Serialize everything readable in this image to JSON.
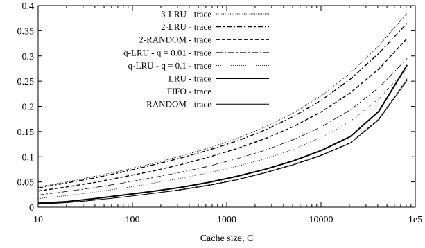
{
  "chart_data": {
    "type": "line",
    "title": "",
    "xlabel": "Cache size, C",
    "ylabel": "",
    "xscale": "log",
    "xlim": [
      10,
      100000
    ],
    "ylim": [
      0,
      0.4
    ],
    "grid": false,
    "legend_position": "top-left",
    "x_ticks": [
      {
        "value": 10,
        "label": "10"
      },
      {
        "value": 100,
        "label": "100"
      },
      {
        "value": 1000,
        "label": "1000"
      },
      {
        "value": 10000,
        "label": "10000"
      },
      {
        "value": 100000,
        "label": "1e5"
      }
    ],
    "y_ticks": [
      {
        "value": 0,
        "label": "0"
      },
      {
        "value": 0.05,
        "label": "0.05"
      },
      {
        "value": 0.1,
        "label": "0.1"
      },
      {
        "value": 0.15,
        "label": "0.15"
      },
      {
        "value": 0.2,
        "label": "0.2"
      },
      {
        "value": 0.25,
        "label": "0.25"
      },
      {
        "value": 0.3,
        "label": "0.3"
      },
      {
        "value": 0.35,
        "label": "0.35"
      },
      {
        "value": 0.4,
        "label": "0.4"
      }
    ],
    "series": [
      {
        "name": "3-LRU - trace",
        "style": "dotted-dense",
        "color": "#000000",
        "x": [
          10,
          20,
          40,
          80,
          160,
          320,
          640,
          1280,
          2560,
          5120,
          10240,
          20480,
          40960,
          81920
        ],
        "y": [
          0.04,
          0.05,
          0.061,
          0.073,
          0.086,
          0.101,
          0.117,
          0.136,
          0.159,
          0.187,
          0.222,
          0.266,
          0.32,
          0.385
        ]
      },
      {
        "name": "2-LRU - trace",
        "style": "dashdot",
        "color": "#000000",
        "x": [
          10,
          20,
          40,
          80,
          160,
          320,
          640,
          1280,
          2560,
          5120,
          10240,
          20480,
          40960,
          81920
        ],
        "y": [
          0.038,
          0.048,
          0.058,
          0.07,
          0.083,
          0.097,
          0.113,
          0.131,
          0.153,
          0.18,
          0.213,
          0.254,
          0.305,
          0.365
        ]
      },
      {
        "name": "2-RANDOM - trace",
        "style": "dashed",
        "color": "#000000",
        "x": [
          10,
          20,
          40,
          80,
          160,
          320,
          640,
          1280,
          2560,
          5120,
          10240,
          20480,
          40960,
          81920
        ],
        "y": [
          0.032,
          0.04,
          0.049,
          0.06,
          0.071,
          0.084,
          0.099,
          0.116,
          0.136,
          0.16,
          0.19,
          0.227,
          0.274,
          0.335
        ]
      },
      {
        "name": "q-LRU - q = 0.01 - trace",
        "style": "dashdot-thin",
        "color": "#000000",
        "x": [
          10,
          20,
          40,
          80,
          160,
          320,
          640,
          1280,
          2560,
          5120,
          10240,
          20480,
          40960,
          81920
        ],
        "y": [
          0.024,
          0.031,
          0.039,
          0.048,
          0.058,
          0.069,
          0.081,
          0.096,
          0.113,
          0.134,
          0.16,
          0.193,
          0.237,
          0.295
        ]
      },
      {
        "name": "q-LRU - q = 0.1 - trace",
        "style": "dotted",
        "color": "#000000",
        "x": [
          10,
          20,
          40,
          80,
          160,
          320,
          640,
          1280,
          2560,
          5120,
          10240,
          20480,
          40960,
          81920
        ],
        "y": [
          0.017,
          0.023,
          0.03,
          0.038,
          0.047,
          0.057,
          0.068,
          0.081,
          0.096,
          0.115,
          0.139,
          0.17,
          0.215,
          0.275
        ]
      },
      {
        "name": "LRU - trace",
        "style": "solid-thick",
        "color": "#000000",
        "x": [
          10,
          20,
          40,
          80,
          160,
          320,
          640,
          1280,
          2560,
          5120,
          10240,
          20480,
          40960,
          81920
        ],
        "y": [
          0.008,
          0.011,
          0.017,
          0.024,
          0.031,
          0.039,
          0.049,
          0.061,
          0.075,
          0.092,
          0.113,
          0.14,
          0.19,
          0.282
        ]
      },
      {
        "name": "FIFO - trace",
        "style": "dashed-thin",
        "color": "#000000",
        "x": [
          10,
          20,
          40,
          80,
          160,
          320,
          640,
          1280,
          2560,
          5120,
          10240,
          20480,
          40960,
          81920
        ],
        "y": [
          0.006,
          0.009,
          0.014,
          0.02,
          0.027,
          0.035,
          0.044,
          0.055,
          0.069,
          0.085,
          0.104,
          0.128,
          0.175,
          0.255
        ]
      },
      {
        "name": "RANDOM - trace",
        "style": "solid-thin",
        "color": "#000000",
        "x": [
          10,
          20,
          40,
          80,
          160,
          320,
          640,
          1280,
          2560,
          5120,
          10240,
          20480,
          40960,
          81920
        ],
        "y": [
          0.006,
          0.009,
          0.014,
          0.02,
          0.027,
          0.034,
          0.043,
          0.054,
          0.068,
          0.084,
          0.103,
          0.127,
          0.173,
          0.252
        ]
      }
    ]
  }
}
